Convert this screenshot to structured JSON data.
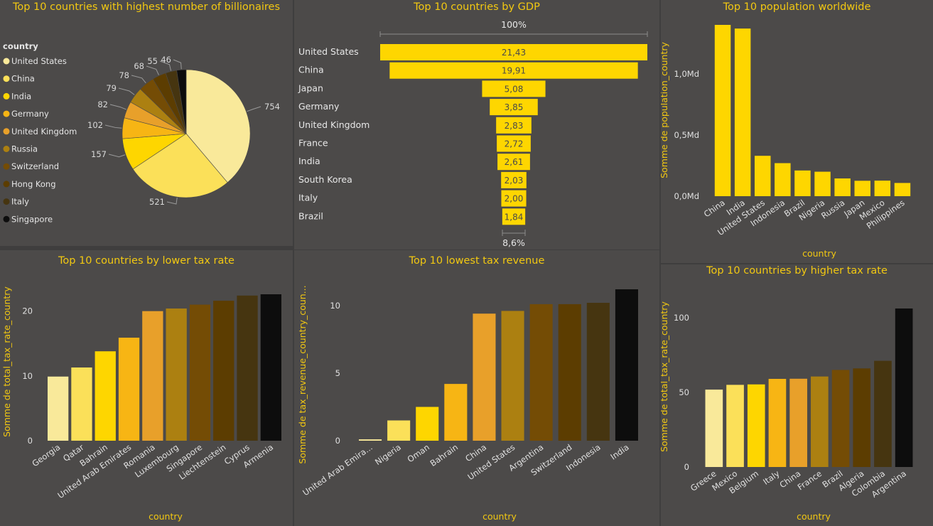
{
  "colors": {
    "background": "#4c4a49",
    "accent": "#f2c811",
    "palette": [
      "#f9e99a",
      "#fbe059",
      "#fed600",
      "#f7b514",
      "#e8a02a",
      "#ac8011",
      "#744c05",
      "#5c3d01",
      "#463510",
      "#0d0d0d"
    ]
  },
  "panels": {
    "billionaires": {
      "title": "Top 10 countries with highest number of billionaires",
      "legend_title": "country"
    },
    "gdp": {
      "title": "Top 10 countries by GDP",
      "top_pct": "100%",
      "bottom_pct": "8,6%"
    },
    "population": {
      "title": "Top 10 population worldwide",
      "ylabel": "Somme de population_country",
      "xlabel": "country",
      "ticks": [
        "1,0Md",
        "0,5Md",
        "0,0Md"
      ]
    },
    "low_tax": {
      "title": "Top 10 countries by lower tax rate",
      "ylabel": "Somme de total_tax_rate_country",
      "xlabel": "country",
      "ticks": [
        "20",
        "10",
        "0"
      ]
    },
    "low_revenue": {
      "title": "Top 10 lowest tax revenue",
      "ylabel": "Somme de tax_revenue_country_coun...",
      "xlabel": "country",
      "ticks": [
        "10",
        "5",
        "0"
      ]
    },
    "high_tax": {
      "title": "Top 10 countries by higher tax rate",
      "ylabel": "Somme de total_tax_rate_country",
      "xlabel": "country",
      "ticks": [
        "100",
        "50",
        "0"
      ]
    }
  },
  "chart_data": [
    {
      "type": "pie",
      "title": "Top 10 countries with highest number of billionaires",
      "legend_title": "country",
      "legend_position": "left",
      "categories": [
        "United States",
        "China",
        "India",
        "Germany",
        "United Kingdom",
        "Russia",
        "Switzerland",
        "Hong Kong",
        "Italy",
        "Singapore"
      ],
      "values": [
        754,
        521,
        157,
        102,
        82,
        79,
        78,
        68,
        55,
        46
      ],
      "labels": [
        "754",
        "521",
        "157",
        "102",
        "82",
        "79",
        "78",
        "68",
        "55",
        "46"
      ]
    },
    {
      "type": "bar",
      "orientation": "funnel",
      "title": "Top 10 countries by GDP",
      "categories": [
        "United States",
        "China",
        "Japan",
        "Germany",
        "United Kingdom",
        "France",
        "India",
        "South Korea",
        "Italy",
        "Brazil"
      ],
      "values": [
        21.43,
        19.91,
        5.08,
        3.85,
        2.83,
        2.72,
        2.61,
        2.03,
        2.0,
        1.84
      ],
      "labels": [
        "21,43",
        "19,91",
        "5,08",
        "3,85",
        "2,83",
        "2,72",
        "2,61",
        "2,03",
        "2,00",
        "1,84"
      ],
      "top_pct": "100%",
      "bottom_pct": "8,6%"
    },
    {
      "type": "bar",
      "title": "Top 10 population worldwide",
      "xlabel": "country",
      "ylabel": "Somme de population_country",
      "categories": [
        "China",
        "India",
        "United States",
        "Indonesia",
        "Brazil",
        "Nigeria",
        "Russia",
        "Japan",
        "Mexico",
        "Philippines"
      ],
      "values": [
        1.4,
        1.37,
        0.33,
        0.27,
        0.21,
        0.2,
        0.145,
        0.126,
        0.127,
        0.108
      ],
      "ylim": [
        0,
        1.4
      ],
      "yticks": [
        0,
        0.5,
        1.0
      ],
      "ytick_labels": [
        "0,0Md",
        "0,5Md",
        "1,0Md"
      ],
      "color": "#fed600"
    },
    {
      "type": "bar",
      "title": "Top 10 countries by lower tax rate",
      "xlabel": "country",
      "ylabel": "Somme de total_tax_rate_country",
      "categories": [
        "Georgia",
        "Qatar",
        "Bahrain",
        "United Arab Emirates",
        "Romania",
        "Luxembourg",
        "Singapore",
        "Liechtenstein",
        "Cyprus",
        "Armenia"
      ],
      "values": [
        9.9,
        11.3,
        13.8,
        15.9,
        20.0,
        20.4,
        21.0,
        21.6,
        22.4,
        22.6
      ],
      "ylim": [
        0,
        22.6
      ],
      "yticks": [
        0,
        10,
        20
      ]
    },
    {
      "type": "bar",
      "title": "Top 10 lowest tax revenue",
      "xlabel": "country",
      "ylabel": "Somme de tax_revenue_country_coun...",
      "categories": [
        "United Arab Emira...",
        "Nigeria",
        "Oman",
        "Bahrain",
        "China",
        "United States",
        "Argentina",
        "Switzerland",
        "Indonesia",
        "India"
      ],
      "values": [
        0.1,
        1.5,
        2.5,
        4.2,
        9.4,
        9.6,
        10.1,
        10.1,
        10.2,
        11.2
      ],
      "ylim": [
        0,
        11.2
      ],
      "yticks": [
        0,
        5,
        10
      ]
    },
    {
      "type": "bar",
      "title": "Top 10 countries by higher tax rate",
      "xlabel": "country",
      "ylabel": "Somme de total_tax_rate_country",
      "categories": [
        "Greece",
        "Mexico",
        "Belgium",
        "Italy",
        "China",
        "France",
        "Brazil",
        "Algeria",
        "Colombia",
        "Argentina"
      ],
      "values": [
        51.9,
        55.1,
        55.4,
        59.1,
        59.2,
        60.7,
        65.1,
        66.1,
        71.2,
        106.3
      ],
      "ylim": [
        0,
        106.3
      ],
      "yticks": [
        0,
        50,
        100
      ]
    }
  ]
}
